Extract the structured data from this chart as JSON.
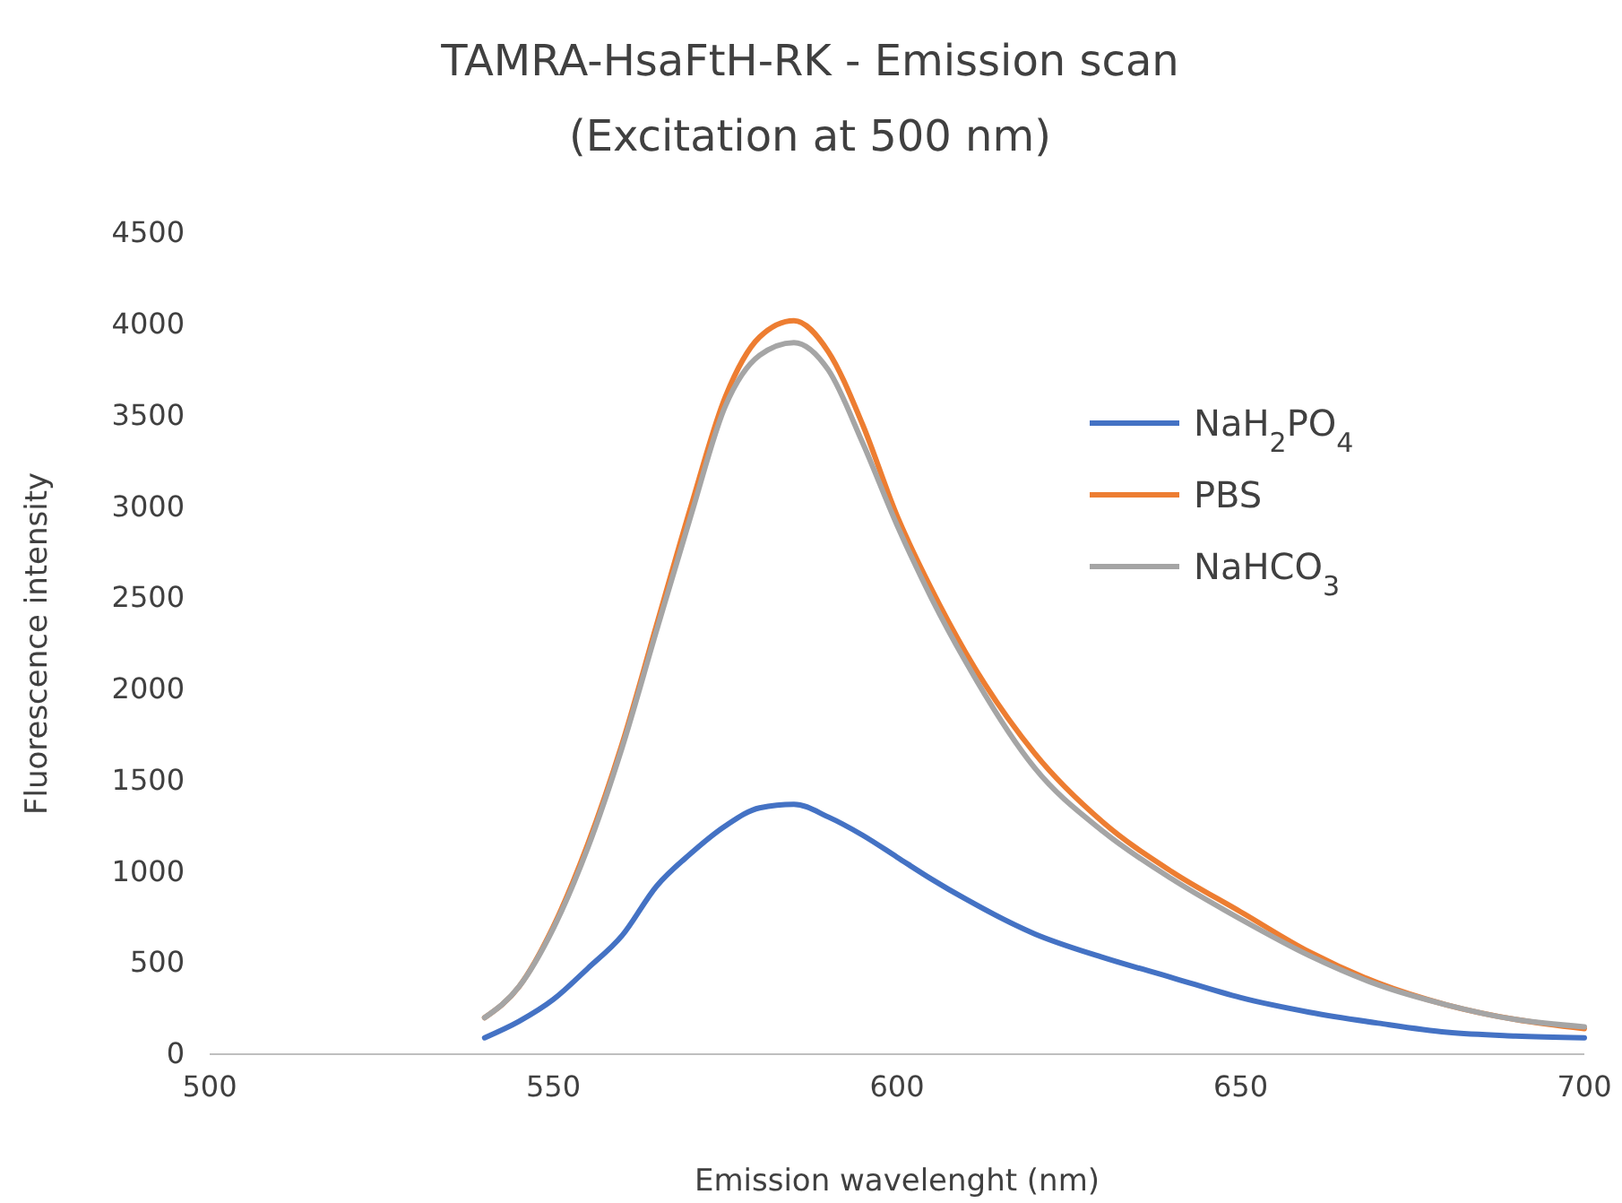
{
  "chart_data": {
    "type": "line",
    "title": "TAMRA-HsaFtH-RK - Emission scan",
    "subtitle": "(Excitation at 500 nm)",
    "xlabel": "Emission wavelenght (nm)",
    "ylabel": "Fluorescence intensity",
    "xlim": [
      500,
      700
    ],
    "xticks": [
      500,
      550,
      600,
      650,
      700
    ],
    "ylim": [
      0,
      4500
    ],
    "yticks": [
      0,
      500,
      1000,
      1500,
      2000,
      2500,
      3000,
      3500,
      4000,
      4500
    ],
    "grid": false,
    "legend": "right",
    "marker": "none",
    "line_style": "solid",
    "x": [
      540,
      545,
      550,
      555,
      560,
      565,
      570,
      575,
      580,
      585,
      590,
      595,
      600,
      605,
      610,
      620,
      630,
      640,
      650,
      660,
      670,
      680,
      690,
      700
    ],
    "series": [
      {
        "name": "NaH$_{2}$PO$_{4}$",
        "color": "#4472c4",
        "values": [
          90,
          180,
          300,
          470,
          650,
          920,
          1100,
          1250,
          1350,
          1370,
          1300,
          1200,
          1080,
          960,
          850,
          660,
          530,
          420,
          310,
          230,
          170,
          120,
          100,
          90
        ]
      },
      {
        "name": "PBS",
        "color": "#ed7d31",
        "values": [
          200,
          370,
          700,
          1150,
          1700,
          2350,
          3000,
          3600,
          3930,
          4020,
          3850,
          3450,
          2950,
          2550,
          2200,
          1650,
          1270,
          1000,
          780,
          560,
          390,
          270,
          190,
          140
        ]
      },
      {
        "name": "NaHCO$_{3}$",
        "color": "#a5a5a5",
        "values": [
          200,
          370,
          690,
          1130,
          1680,
          2320,
          2950,
          3550,
          3830,
          3900,
          3750,
          3350,
          2900,
          2500,
          2150,
          1570,
          1220,
          960,
          740,
          540,
          380,
          270,
          190,
          150
        ]
      }
    ]
  }
}
